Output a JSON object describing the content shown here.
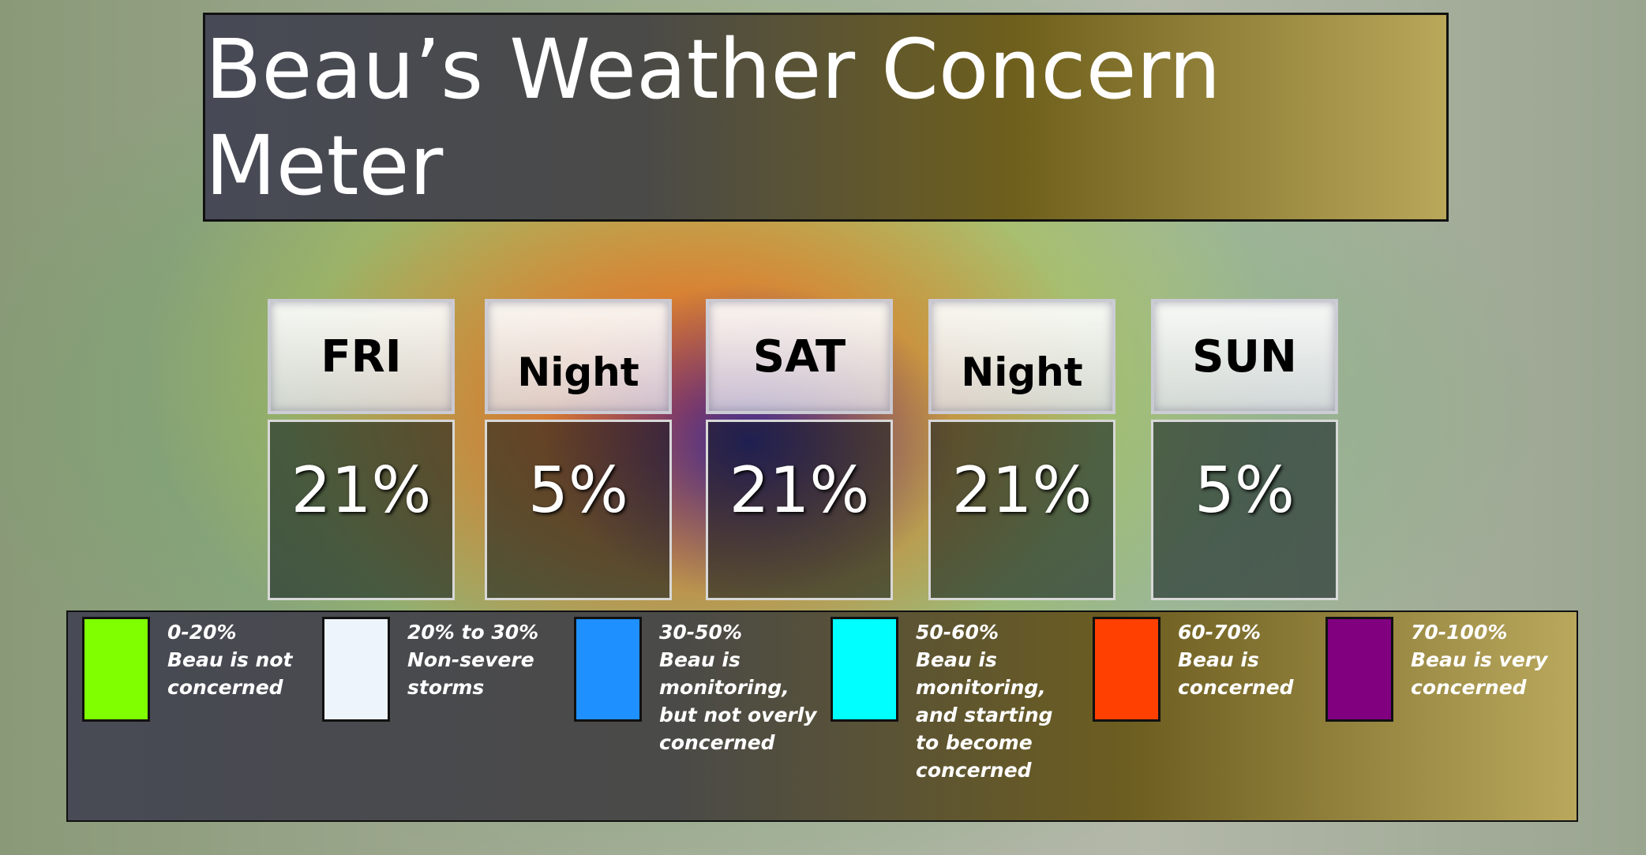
{
  "title": "Beau’s Weather Concern Meter",
  "periods": [
    {
      "label": "FRI",
      "value": "21%"
    },
    {
      "label": "Night",
      "value": "5%"
    },
    {
      "label": "SAT",
      "value": "21%"
    },
    {
      "label": "Night",
      "value": "21%"
    },
    {
      "label": "SUN",
      "value": "5%"
    }
  ],
  "legend": [
    {
      "range": "0-20%",
      "text": "Beau is not concerned",
      "color": "#80ff00"
    },
    {
      "range": "20% to 30%",
      "text": "Non-severe storms",
      "color": "#eef4fb"
    },
    {
      "range": "30-50%",
      "text": "Beau is monitoring, but not overly concerned",
      "color": "#1e90ff"
    },
    {
      "range": "50-60%",
      "text": "Beau is monitoring, and starting to become concerned",
      "color": "#00ffff"
    },
    {
      "range": "60-70%",
      "text": "Beau is concerned",
      "color": "#ff4000"
    },
    {
      "range": "70-100%",
      "text": "Beau is very concerned",
      "color": "#800080"
    }
  ]
}
